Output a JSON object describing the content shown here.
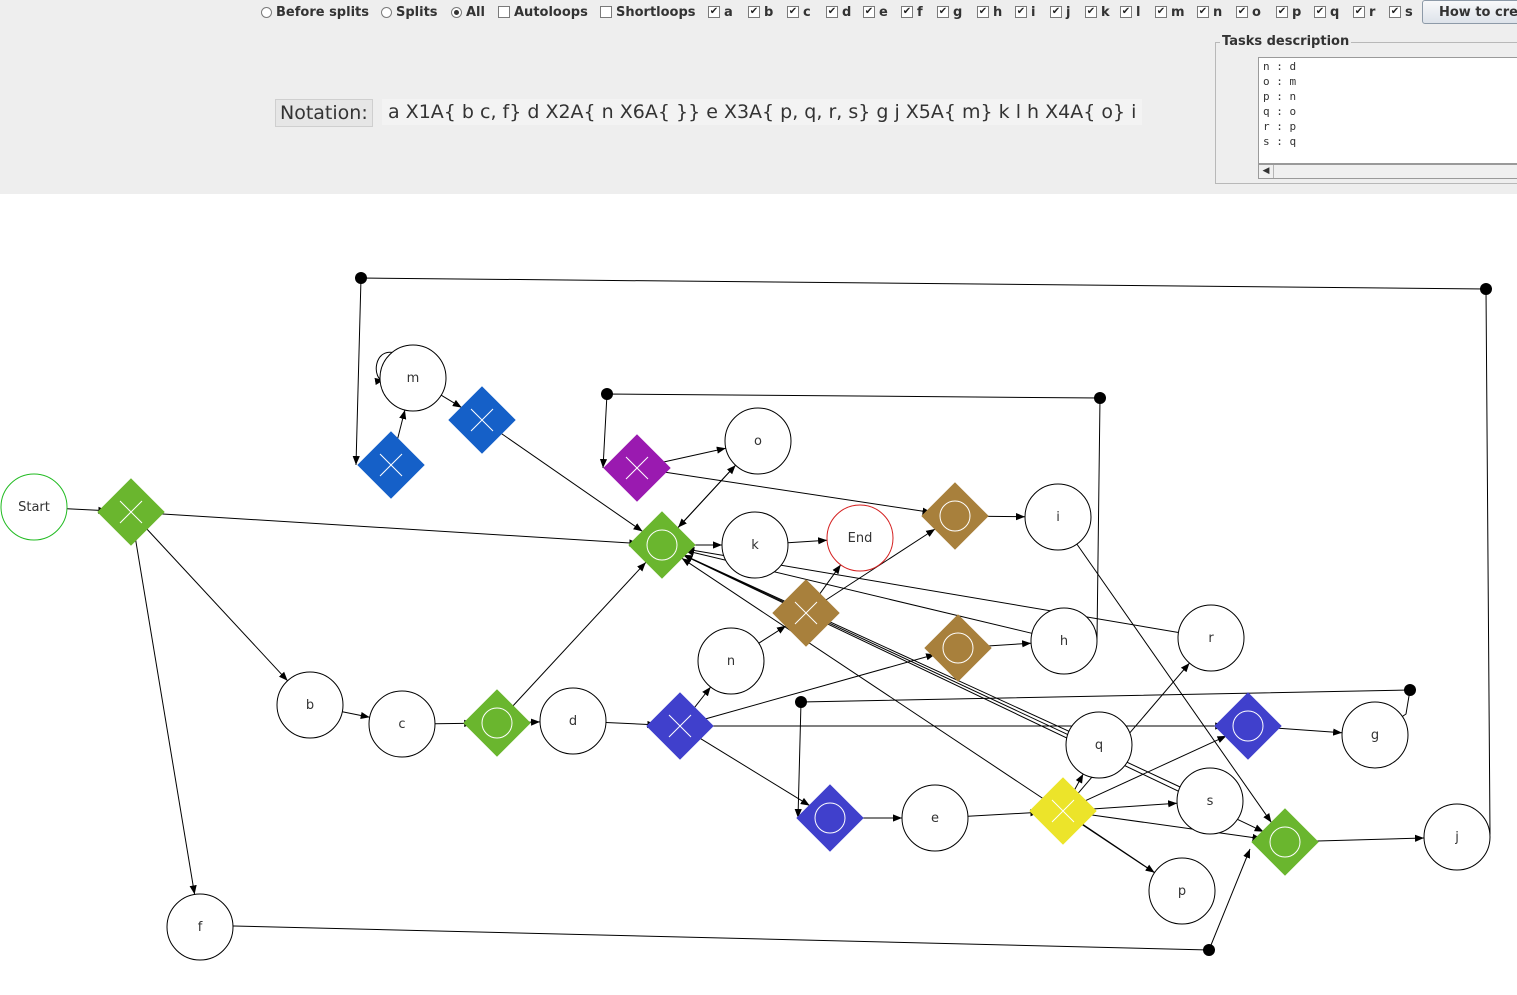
{
  "toolbar": {
    "radios": [
      {
        "label": "Before splits",
        "checked": false
      },
      {
        "label": "Splits",
        "checked": false
      },
      {
        "label": "All",
        "checked": true
      }
    ],
    "options": [
      {
        "label": "Autoloops",
        "checked": false
      },
      {
        "label": "Shortloops",
        "checked": false
      }
    ],
    "tasks": [
      {
        "label": "a",
        "checked": true
      },
      {
        "label": "b",
        "checked": true
      },
      {
        "label": "c",
        "checked": true
      },
      {
        "label": "d",
        "checked": true
      },
      {
        "label": "e",
        "checked": true
      },
      {
        "label": "f",
        "checked": true
      },
      {
        "label": "g",
        "checked": true
      },
      {
        "label": "h",
        "checked": true
      },
      {
        "label": "i",
        "checked": true
      },
      {
        "label": "j",
        "checked": true
      },
      {
        "label": "k",
        "checked": true
      },
      {
        "label": "l",
        "checked": true
      },
      {
        "label": "m",
        "checked": true
      },
      {
        "label": "n",
        "checked": true
      },
      {
        "label": "o",
        "checked": true
      },
      {
        "label": "p",
        "checked": true
      },
      {
        "label": "q",
        "checked": true
      },
      {
        "label": "r",
        "checked": true
      },
      {
        "label": "s",
        "checked": true
      }
    ],
    "howto_label": "How to cre"
  },
  "notation": {
    "label": "Notation:",
    "value": "a X1A{  b c, f} d X2A{  n X6A{ }} e X3A{  p, q, r, s} g j X5A{  m} k l h X4A{  o} i"
  },
  "tasks_description": {
    "title": "Tasks description",
    "lines": [
      "n : d",
      "o : m",
      "p : n",
      "q : o",
      "r : p",
      "s : q"
    ]
  },
  "graph": {
    "nodes": [
      {
        "id": "start",
        "kind": "event",
        "label": "Start",
        "color": "#22bb22"
      },
      {
        "id": "end",
        "kind": "event",
        "label": "End",
        "color": "#d42020"
      },
      {
        "id": "m",
        "kind": "task",
        "label": "m"
      },
      {
        "id": "o",
        "kind": "task",
        "label": "o"
      },
      {
        "id": "k",
        "kind": "task",
        "label": "k"
      },
      {
        "id": "i",
        "kind": "task",
        "label": "i"
      },
      {
        "id": "n",
        "kind": "task",
        "label": "n"
      },
      {
        "id": "h",
        "kind": "task",
        "label": "h"
      },
      {
        "id": "r",
        "kind": "task",
        "label": "r"
      },
      {
        "id": "b",
        "kind": "task",
        "label": "b"
      },
      {
        "id": "c",
        "kind": "task",
        "label": "c"
      },
      {
        "id": "d",
        "kind": "task",
        "label": "d"
      },
      {
        "id": "q",
        "kind": "task",
        "label": "q"
      },
      {
        "id": "g",
        "kind": "task",
        "label": "g"
      },
      {
        "id": "e",
        "kind": "task",
        "label": "e"
      },
      {
        "id": "s",
        "kind": "task",
        "label": "s"
      },
      {
        "id": "j",
        "kind": "task",
        "label": "j"
      },
      {
        "id": "p",
        "kind": "task",
        "label": "p"
      },
      {
        "id": "f",
        "kind": "task",
        "label": "f"
      },
      {
        "id": "gw1",
        "kind": "gateway",
        "gateway_type": "xor",
        "color": "#6ab62e"
      },
      {
        "id": "gw2",
        "kind": "gateway",
        "gateway_type": "xor",
        "color": "#1560c8"
      },
      {
        "id": "gw3",
        "kind": "gateway",
        "gateway_type": "xor",
        "color": "#1560c8"
      },
      {
        "id": "gw4",
        "kind": "gateway",
        "gateway_type": "xor",
        "color": "#9a1ab0"
      },
      {
        "id": "gw5",
        "kind": "gateway",
        "gateway_type": "or",
        "color": "#6ab62e"
      },
      {
        "id": "gw6",
        "kind": "gateway",
        "gateway_type": "or",
        "color": "#a8803c"
      },
      {
        "id": "gw7",
        "kind": "gateway",
        "gateway_type": "xor",
        "color": "#a8803c"
      },
      {
        "id": "gw8",
        "kind": "gateway",
        "gateway_type": "or",
        "color": "#a8803c"
      },
      {
        "id": "gw9",
        "kind": "gateway",
        "gateway_type": "or",
        "color": "#6ab62e"
      },
      {
        "id": "gw10",
        "kind": "gateway",
        "gateway_type": "xor",
        "color": "#4040cc"
      },
      {
        "id": "gw11",
        "kind": "gateway",
        "gateway_type": "or",
        "color": "#4040cc"
      },
      {
        "id": "gw12",
        "kind": "gateway",
        "gateway_type": "or",
        "color": "#4040cc"
      },
      {
        "id": "gw13",
        "kind": "gateway",
        "gateway_type": "xor",
        "color": "#ece42a"
      },
      {
        "id": "gw14",
        "kind": "gateway",
        "gateway_type": "or",
        "color": "#6ab62e"
      }
    ],
    "edges": [
      [
        "start",
        "gw1"
      ],
      [
        "gw1",
        "gw5"
      ],
      [
        "gw1",
        "b"
      ],
      [
        "gw1",
        "f"
      ],
      [
        "b",
        "c"
      ],
      [
        "c",
        "gw9"
      ],
      [
        "gw9",
        "d"
      ],
      [
        "gw9",
        "gw5"
      ],
      [
        "d",
        "gw10"
      ],
      [
        "gw10",
        "n"
      ],
      [
        "gw10",
        "gw11"
      ],
      [
        "gw10",
        "gw12"
      ],
      [
        "gw10",
        "gw8"
      ],
      [
        "n",
        "gw7"
      ],
      [
        "gw7",
        "end"
      ],
      [
        "gw7",
        "gw6"
      ],
      [
        "gw5",
        "k"
      ],
      [
        "gw5",
        "o"
      ],
      [
        "k",
        "end"
      ],
      [
        "o",
        "gw5"
      ],
      [
        "gw4",
        "o"
      ],
      [
        "gw4",
        "gw6"
      ],
      [
        "gw6",
        "i"
      ],
      [
        "i",
        "gw14"
      ],
      [
        "gw8",
        "h"
      ],
      [
        "gw12",
        "e"
      ],
      [
        "e",
        "gw13"
      ],
      [
        "gw13",
        "q"
      ],
      [
        "gw13",
        "r"
      ],
      [
        "gw13",
        "s"
      ],
      [
        "gw13",
        "p"
      ],
      [
        "gw13",
        "gw14"
      ],
      [
        "gw13",
        "gw11"
      ],
      [
        "gw11",
        "g"
      ],
      [
        "gw14",
        "j"
      ],
      [
        "gw2",
        "m"
      ],
      [
        "m",
        "gw3"
      ],
      [
        "gw3",
        "gw5"
      ],
      [
        "r",
        "gw5"
      ],
      [
        "q",
        "gw5"
      ],
      [
        "s",
        "gw5"
      ],
      [
        "p",
        "gw5"
      ],
      [
        "h",
        "gw5"
      ],
      [
        "gw5",
        "gw14"
      ],
      [
        "j",
        "gw2"
      ],
      [
        "h",
        "gw4"
      ],
      [
        "g",
        "gw12"
      ],
      [
        "f",
        "gw14"
      ]
    ]
  }
}
